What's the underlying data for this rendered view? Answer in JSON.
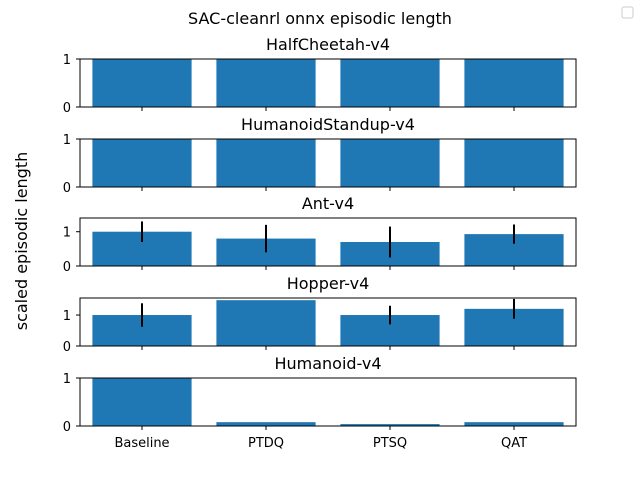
{
  "chart_data": {
    "type": "bar",
    "title": "SAC-cleanrl onnx episodic length",
    "ylabel": "scaled episodic length",
    "categories": [
      "Baseline",
      "PTDQ",
      "PTSQ",
      "QAT"
    ],
    "bar_color": "#1f77b4",
    "legend": "top-right (empty)",
    "grid": false,
    "panels": [
      {
        "title": "HalfCheetah-v4",
        "ylim": [
          0,
          1.0
        ],
        "yticks": [
          0,
          1
        ],
        "values": [
          1.0,
          1.0,
          1.0,
          1.0
        ],
        "errors": [
          0,
          0,
          0,
          0
        ]
      },
      {
        "title": "HumanoidStandup-v4",
        "ylim": [
          0,
          1.0
        ],
        "yticks": [
          0,
          1
        ],
        "values": [
          1.0,
          1.0,
          1.0,
          1.0
        ],
        "errors": [
          0,
          0,
          0,
          0
        ]
      },
      {
        "title": "Ant-v4",
        "ylim": [
          0,
          1.4
        ],
        "yticks": [
          0,
          1
        ],
        "values": [
          1.0,
          0.8,
          0.7,
          0.93
        ],
        "errors": [
          0.3,
          0.4,
          0.45,
          0.28
        ]
      },
      {
        "title": "Hopper-v4",
        "ylim": [
          0,
          1.55
        ],
        "yticks": [
          0,
          1
        ],
        "values": [
          1.0,
          1.48,
          1.0,
          1.2
        ],
        "errors": [
          0.38,
          0,
          0.3,
          0.32
        ]
      },
      {
        "title": "Humanoid-v4",
        "ylim": [
          0,
          1.0
        ],
        "yticks": [
          0,
          1
        ],
        "values": [
          1.0,
          0.08,
          0.04,
          0.08
        ],
        "errors": [
          0,
          0,
          0,
          0
        ]
      }
    ]
  }
}
